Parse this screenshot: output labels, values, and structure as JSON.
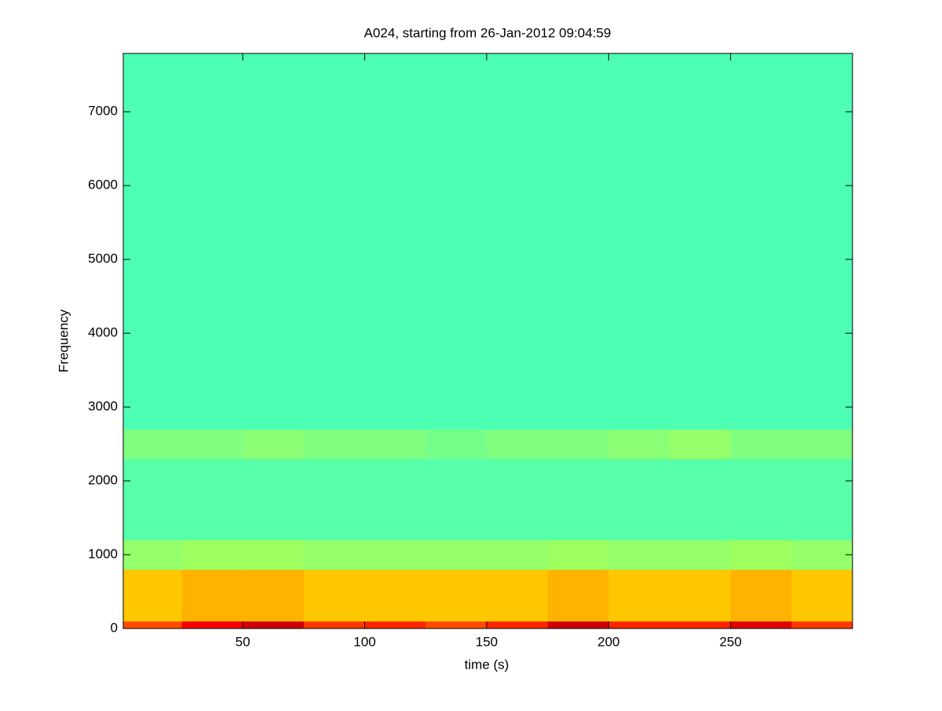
{
  "chart_data": {
    "type": "spectrogram",
    "title": "A024, starting from 26-Jan-2012 09:04:59",
    "x_label": "time (s)",
    "y_label": "Frequency",
    "colormap": "jet",
    "x_edges": [
      1,
      25,
      50,
      75,
      100,
      125,
      150,
      175,
      200,
      225,
      250,
      275,
      300
    ],
    "y_edges": [
      0,
      100,
      800,
      1200,
      2300,
      2700,
      7790
    ],
    "values": [
      [
        0.8,
        0.88,
        0.92,
        0.82,
        0.84,
        0.8,
        0.84,
        0.92,
        0.84,
        0.84,
        0.9,
        0.82
      ],
      [
        0.68,
        0.7,
        0.7,
        0.68,
        0.68,
        0.68,
        0.68,
        0.7,
        0.68,
        0.68,
        0.7,
        0.68
      ],
      [
        0.52,
        0.53,
        0.53,
        0.52,
        0.52,
        0.52,
        0.52,
        0.53,
        0.52,
        0.52,
        0.53,
        0.52
      ],
      [
        0.46,
        0.46,
        0.46,
        0.46,
        0.46,
        0.46,
        0.46,
        0.46,
        0.46,
        0.46,
        0.46,
        0.46
      ],
      [
        0.5,
        0.5,
        0.51,
        0.5,
        0.5,
        0.49,
        0.5,
        0.5,
        0.51,
        0.52,
        0.5,
        0.5
      ],
      [
        0.45,
        0.45,
        0.45,
        0.45,
        0.45,
        0.45,
        0.45,
        0.45,
        0.45,
        0.45,
        0.45,
        0.45
      ]
    ],
    "xlim": [
      1,
      300
    ],
    "ylim": [
      0,
      7790
    ],
    "xticks": [
      50,
      100,
      150,
      200,
      250
    ],
    "yticks": [
      0,
      1000,
      2000,
      3000,
      4000,
      5000,
      6000,
      7000
    ]
  }
}
